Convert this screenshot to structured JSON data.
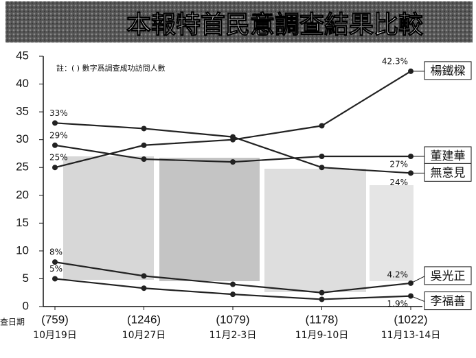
{
  "chart_data": {
    "type": "line",
    "title": "本報特首民意調查結果比較",
    "note": "註：( ) 數字爲調查成功訪問人數",
    "x_label": "查日期",
    "categories": [
      "10月19日",
      "10月27日",
      "11月2-3日",
      "11月9-10日",
      "11月13-14日"
    ],
    "x_sublabels": [
      "(759)",
      "(1246)",
      "(1079)",
      "(1178)",
      "(1022)"
    ],
    "ylim": [
      0,
      45
    ],
    "yticks": [
      0,
      5,
      10,
      15,
      20,
      25,
      30,
      35,
      40,
      45
    ],
    "series": [
      {
        "name": "楊鐵樑",
        "color": "#222",
        "values": [
          25,
          29,
          30,
          32.5,
          42.3
        ],
        "value_labels": [
          "25%",
          null,
          null,
          null,
          "42.3%"
        ]
      },
      {
        "name": "董建華",
        "color": "#222",
        "values": [
          29,
          26.5,
          26,
          27,
          27
        ],
        "value_labels": [
          "29%",
          null,
          null,
          null,
          "27%"
        ]
      },
      {
        "name": "無意見",
        "color": "#222",
        "values": [
          33,
          32,
          30.5,
          25,
          24
        ],
        "value_labels": [
          "33%",
          null,
          null,
          null,
          "24%"
        ]
      },
      {
        "name": "吳光正",
        "color": "#222",
        "values": [
          8,
          5.5,
          4,
          2.5,
          4.2
        ],
        "value_labels": [
          "8%",
          null,
          null,
          null,
          "4.2%"
        ]
      },
      {
        "name": "李福善",
        "color": "#222",
        "values": [
          5,
          3.3,
          2.2,
          1.3,
          1.9
        ],
        "value_labels": [
          "5%",
          null,
          null,
          null,
          "1.9%"
        ]
      }
    ]
  }
}
